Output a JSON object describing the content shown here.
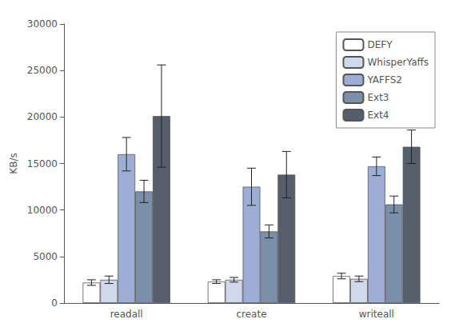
{
  "chart_data": {
    "type": "bar",
    "categories": [
      "readall",
      "create",
      "writeall"
    ],
    "series": [
      {
        "name": "DEFY",
        "color": "#ffffff",
        "values": [
          2200,
          2300,
          2900
        ],
        "errors": [
          300,
          200,
          300
        ]
      },
      {
        "name": "WhisperYaffs",
        "color": "#d0d8ee",
        "values": [
          2500,
          2500,
          2600
        ],
        "errors": [
          400,
          250,
          300
        ]
      },
      {
        "name": "YAFFS2",
        "color": "#9daed4",
        "values": [
          16000,
          12500,
          14700
        ],
        "errors": [
          1800,
          2000,
          1000
        ]
      },
      {
        "name": "Ext3",
        "color": "#7a8faa",
        "values": [
          12000,
          7700,
          10600
        ],
        "errors": [
          1200,
          700,
          900
        ]
      },
      {
        "name": "Ext4",
        "color": "#555e6a",
        "values": [
          20100,
          13800,
          16800
        ],
        "errors": [
          5500,
          2500,
          1800
        ]
      }
    ],
    "ylabel": "KB/s",
    "ylim": [
      0,
      30000
    ],
    "yticks": [
      0,
      5000,
      10000,
      15000,
      20000,
      25000,
      30000
    ],
    "grid": false,
    "legend": "upper right"
  }
}
